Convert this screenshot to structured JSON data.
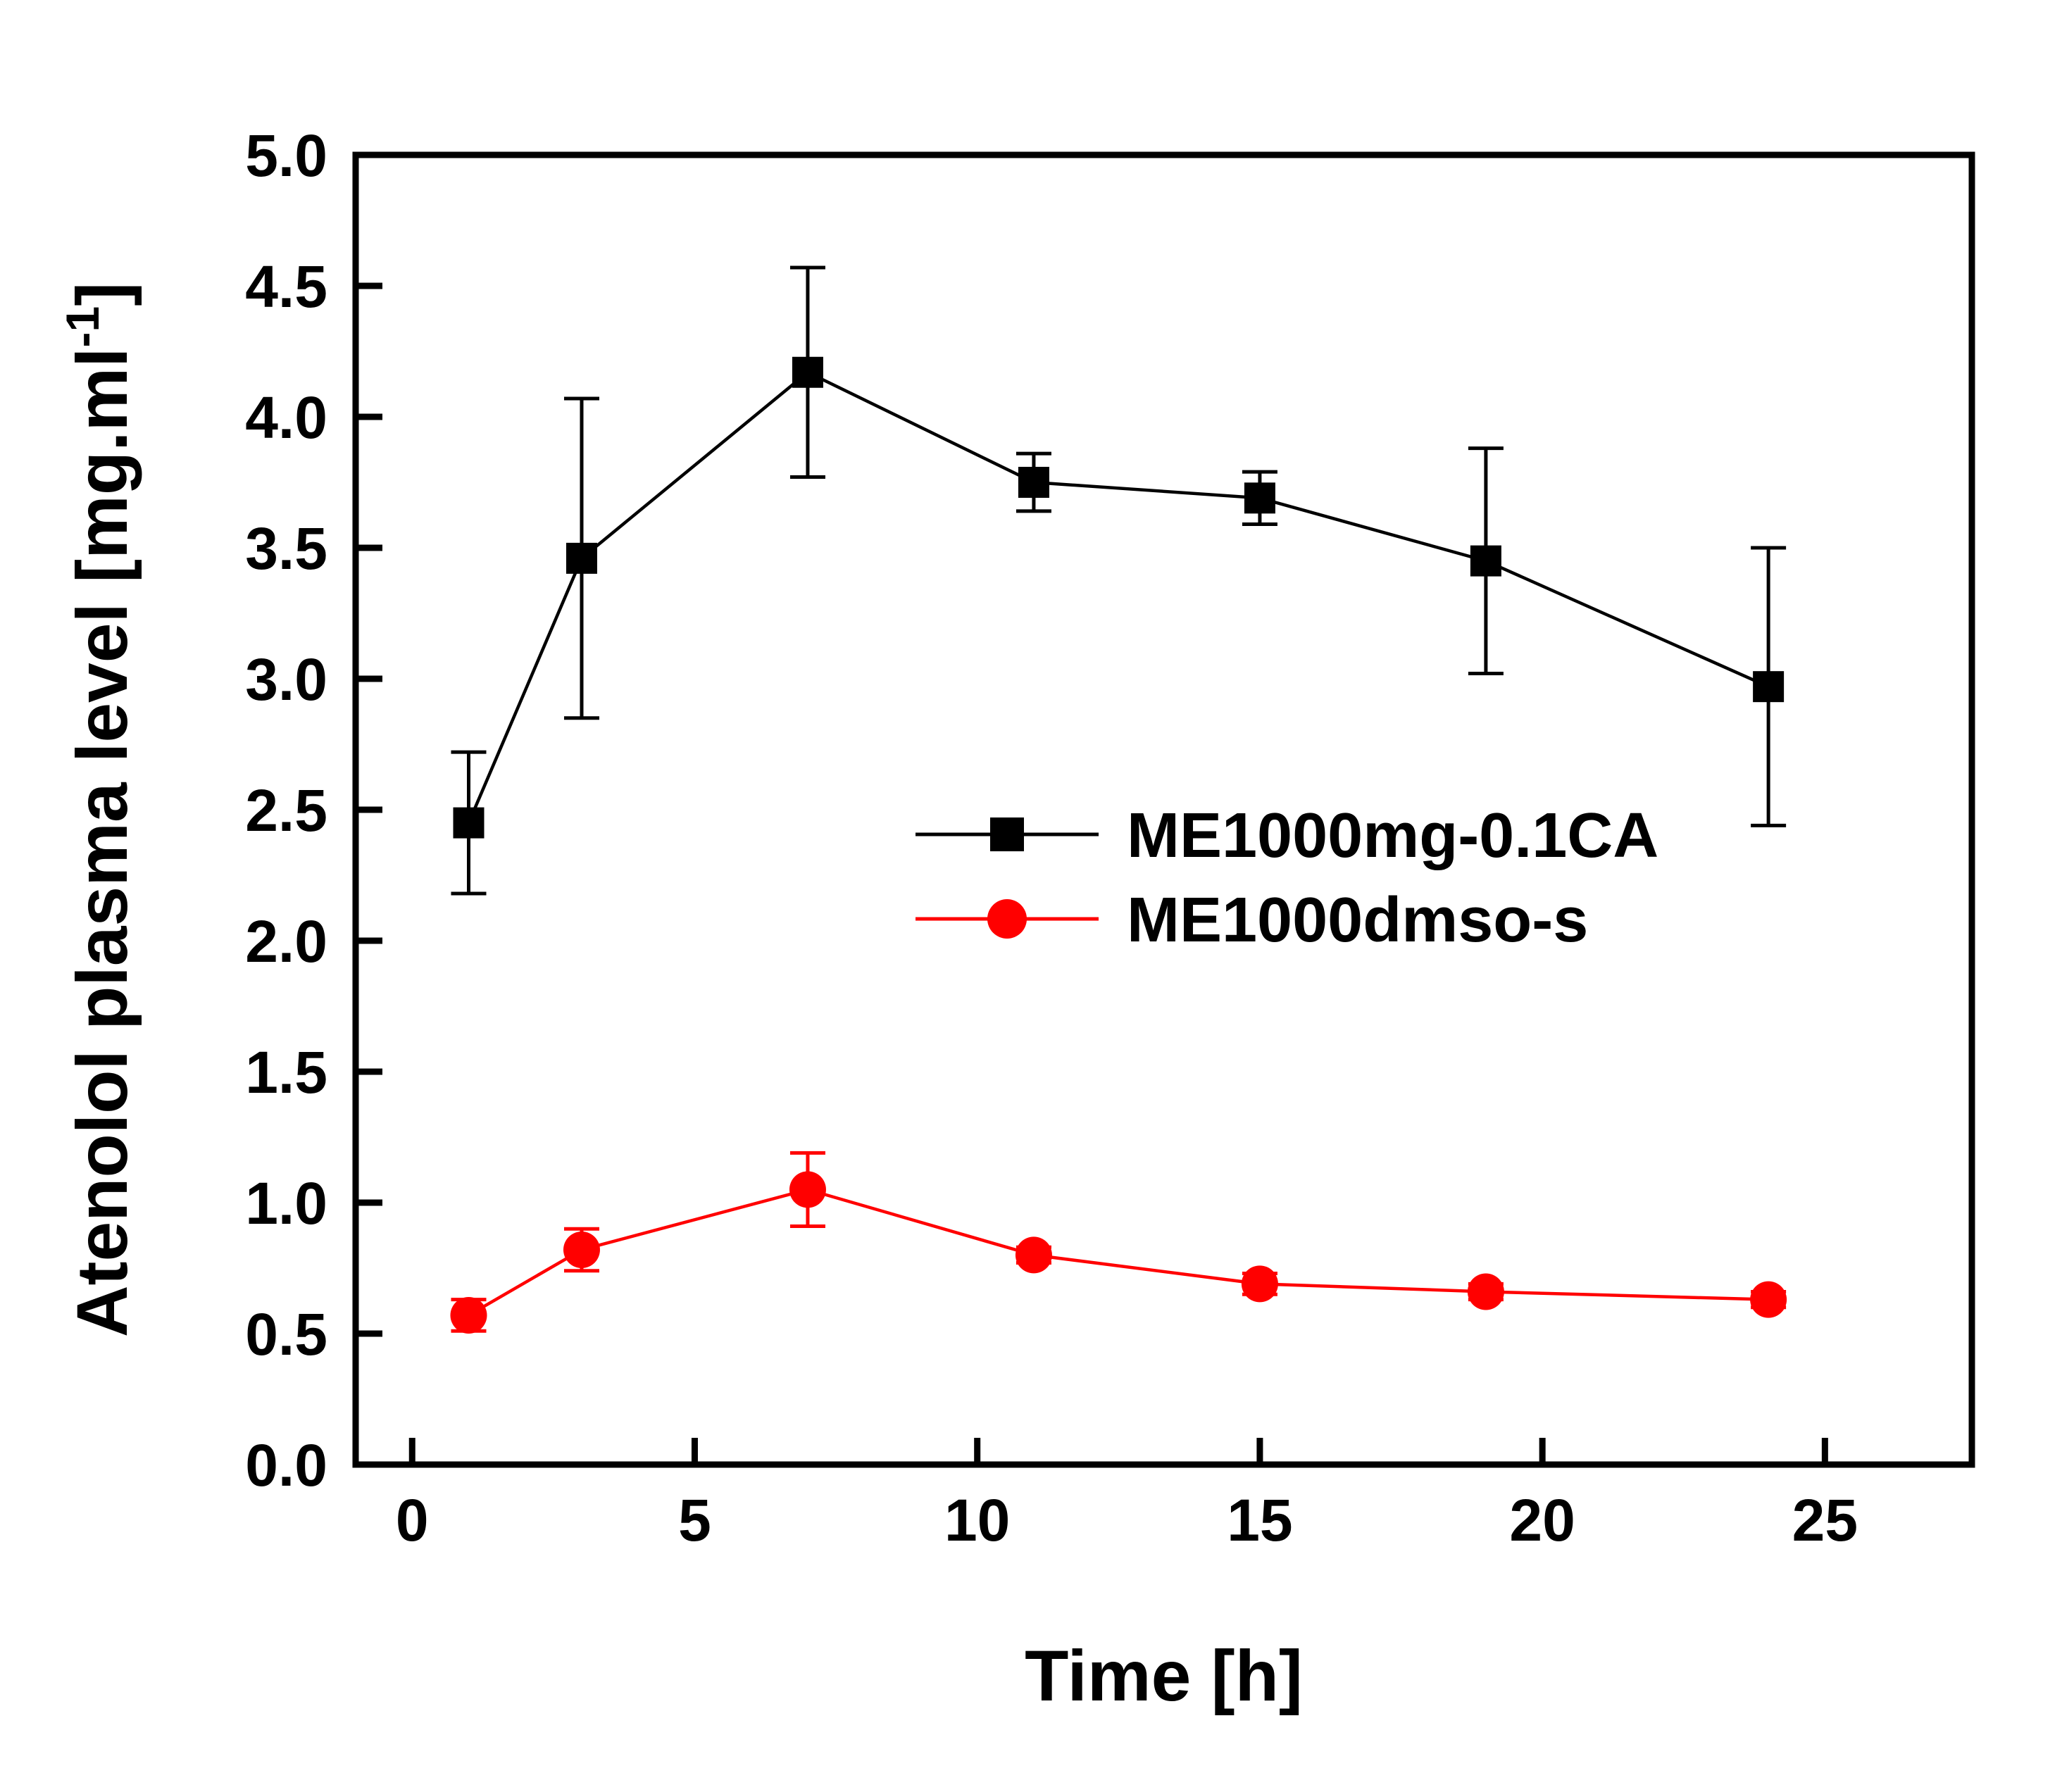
{
  "page": {
    "background": "#ffffff"
  },
  "chart_data": {
    "type": "line",
    "title": "",
    "xlabel": "Time [h]",
    "ylabel_base": "Atenolol plasma level [mg.ml",
    "ylabel_superscript": "-1",
    "ylabel_close": "]",
    "xlim": [
      -1,
      27.6
    ],
    "ylim": [
      0,
      5
    ],
    "xticks": [
      0,
      5,
      10,
      15,
      20,
      25
    ],
    "yticks": [
      0,
      0.5,
      1,
      1.5,
      2,
      2.5,
      3,
      3.5,
      4,
      4.5,
      5
    ],
    "grid": false,
    "x": [
      1,
      3,
      7,
      11,
      15,
      19,
      24
    ],
    "series": [
      {
        "name": "ME1000mg-0.1CA",
        "color": "#000000",
        "marker": "square",
        "values": [
          2.45,
          3.46,
          4.17,
          3.75,
          3.69,
          3.45,
          2.97
        ],
        "errors": [
          0.27,
          0.61,
          0.4,
          0.11,
          0.1,
          0.43,
          0.53
        ]
      },
      {
        "name": "ME1000dmso-s",
        "color": "#ff0000",
        "marker": "circle",
        "values": [
          0.57,
          0.82,
          1.05,
          0.8,
          0.69,
          0.66,
          0.63
        ],
        "errors": [
          0.06,
          0.08,
          0.14,
          0.03,
          0.04,
          0.03,
          0.03
        ]
      }
    ],
    "legend": {
      "position": "center",
      "entries": [
        "ME1000mg-0.1CA",
        "ME1000dmso-s"
      ]
    }
  }
}
